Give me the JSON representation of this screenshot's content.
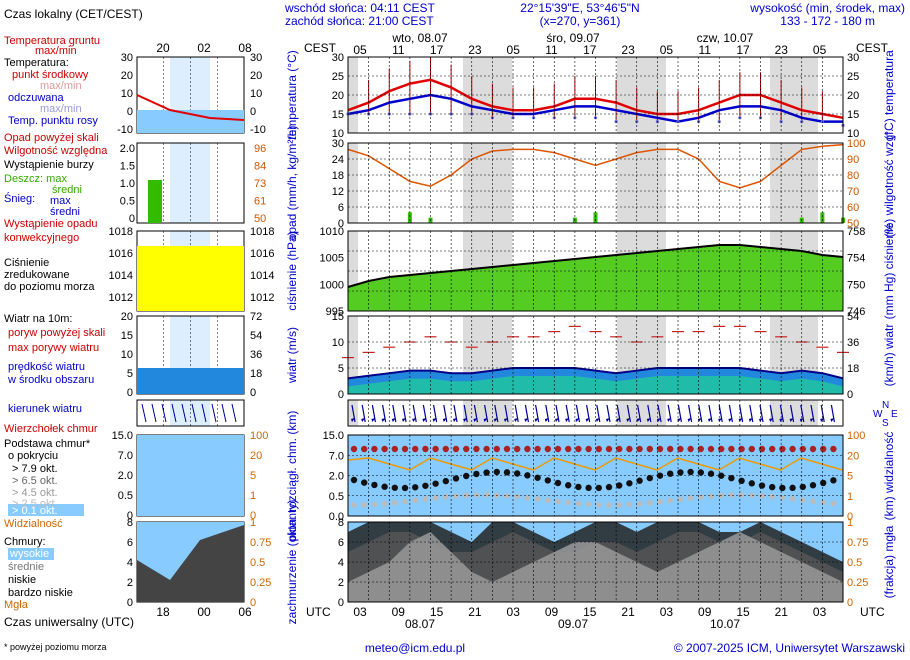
{
  "header": {
    "sunrise": "wschód słońca: 04:11 CEST",
    "sunset": "zachód słońca: 21:00 CEST",
    "coords": "22°15'39\"E, 53°46'5\"N",
    "grid": "(x=270, y=361)",
    "elev_label": "wysokość (min, środek, max)",
    "elev_values": "133 - 172 - 180 m",
    "tz_top": "CEST",
    "tz_bottom": "UTC",
    "days_top": [
      "wto, 08.07",
      "śro, 09.07",
      "czw, 10.07"
    ],
    "days_bottom": [
      "08.07",
      "09.07",
      "10.07"
    ],
    "hours_top": [
      "05",
      "11",
      "17",
      "23",
      "05",
      "11",
      "17",
      "23",
      "05",
      "11",
      "17",
      "23",
      "05"
    ],
    "hours_bottom": [
      "03",
      "09",
      "15",
      "21",
      "03",
      "09",
      "15",
      "21",
      "03",
      "09",
      "15",
      "21",
      "03"
    ]
  },
  "legend": {
    "local_time": "Czas lokalny (CET/CEST)",
    "local_hours": [
      "20",
      "02",
      "08"
    ],
    "utc_label": "Czas uniwersalny (UTC)",
    "utc_hours": [
      "18",
      "00",
      "06"
    ],
    "footnote": "* powyżej poziomu morza",
    "temp": [
      "Temperatura gruntu",
      "max/min",
      "Temperatura:",
      "punkt środkowy",
      "max/min",
      "odczuwana",
      "max/min",
      "Temp. punktu rosy"
    ],
    "temp_ticks": [
      "30",
      "20",
      "10",
      "0",
      "-10"
    ],
    "precip": [
      "Opad powyżej skali",
      "Wilgotność względna",
      "Wystąpienie burzy",
      "Deszcz: max",
      "średni",
      "Śnieg:",
      "max",
      "średni",
      "Wystąpienie opadu",
      "konwekcyjnego"
    ],
    "precip_ticks_left": [
      "2.0",
      "1.5",
      "1.0",
      "0.5",
      "0"
    ],
    "precip_ticks_right": [
      "96",
      "84",
      "73",
      "61",
      "50"
    ],
    "pressure": [
      "Ciśnienie",
      "zredukowane",
      "do poziomu morza"
    ],
    "pressure_ticks": [
      "1018",
      "1016",
      "1014",
      "1012"
    ],
    "wind": [
      "Wiatr na 10m:",
      "poryw powyżej skali",
      "max porywy wiatru",
      "prędkość wiatru",
      "w środku obszaru"
    ],
    "wind_ticks_left": [
      "20",
      "15",
      "10",
      "5",
      "0"
    ],
    "wind_ticks_right": [
      "72",
      "54",
      "36",
      "18",
      "0"
    ],
    "direction": "kierunek wiatru",
    "cloud_base": [
      "Wierzchołek chmur",
      "Podstawa chmur*",
      "o pokryciu",
      "> 7.9 okt.",
      "> 6.5 okt.",
      "> 4.5 okt.",
      "> 2.5 okt.",
      "> 0.1 okt.",
      "Widzialność"
    ],
    "cloud_base_ticks_left": [
      "15.0",
      "7.0",
      "2.0",
      "0.5",
      "0"
    ],
    "cloud_base_ticks_right": [
      "100",
      "20",
      "5",
      "1",
      "0"
    ],
    "clouds": [
      "Chmury:",
      "wysokie",
      "średnie",
      "niskie",
      "bardzo niskie",
      "Mgła"
    ],
    "clouds_ticks_left": [
      "8",
      "6",
      "4",
      "2",
      "0"
    ],
    "clouds_ticks_right": [
      "1",
      "0.75",
      "0.5",
      "0.25",
      "0"
    ]
  },
  "panels": {
    "temp": {
      "left_label": "temperatura (°C)",
      "right_label": "(°C) temperatura",
      "ticks": [
        "30",
        "25",
        "20",
        "15",
        "10"
      ]
    },
    "precip": {
      "left_label": "opad (mm/h, kg/m²/h)",
      "right_label": "(%) wilgotność wzgl.",
      "ticks_left": [
        "30",
        "24",
        "18",
        "12",
        "6",
        "0"
      ],
      "ticks_right": [
        "100",
        "90",
        "80",
        "70",
        "60",
        "50"
      ]
    },
    "pressure": {
      "left_label": "ciśnienie (hPa)",
      "right_label": "(mm Hg) ciśnienie",
      "ticks_left": [
        "1010",
        "1005",
        "1000",
        "995"
      ],
      "ticks_right": [
        "758",
        "754",
        "750",
        "746"
      ]
    },
    "wind": {
      "left_label": "wiatr (m/s)",
      "right_label": "(km/h) wiatr",
      "ticks_left": [
        "15",
        "10",
        "5",
        "0"
      ],
      "ticks_right": [
        "54",
        "36",
        "18",
        "0"
      ]
    },
    "dir": {
      "compass": [
        "N",
        "W",
        "E",
        "S"
      ]
    },
    "cloudbase": {
      "left_label": "pion. rozciągł. chm. (km)",
      "right_label": "(km) widzialność",
      "ticks_left": [
        "15.0",
        "7.0",
        "2.0",
        "0.5",
        "0.0"
      ],
      "ticks_right": [
        "100",
        "20",
        "5",
        "1",
        "0"
      ]
    },
    "cloud": {
      "left_label": "zachmurzenie (oktanty)",
      "right_label": "(frakcja) mgła",
      "ticks_left": [
        "8",
        "6",
        "4",
        "2",
        "0"
      ],
      "ticks_right": [
        "1",
        "0.75",
        "0.5",
        "0.25",
        "0"
      ]
    }
  },
  "footer": {
    "email": "meteo@icm.edu.pl",
    "copyright": "© 2007-2025 ICM, Uniwersytet Warszawski"
  },
  "colors": {
    "red": "#e00000",
    "blue": "#0000cc",
    "green": "#33bb00",
    "yellow": "#ffff00",
    "sky": "#88ccff",
    "orange": "#dd6600",
    "night": "#d8d8d8"
  },
  "chart_data": [
    {
      "type": "line",
      "title": "temperatura",
      "ylabel": "(°C)",
      "ylim": [
        10,
        30
      ],
      "x": [
        "05",
        "08",
        "11",
        "14",
        "17",
        "20",
        "23",
        "02",
        "05",
        "08",
        "11",
        "14",
        "17",
        "20",
        "23",
        "02",
        "05",
        "08",
        "11",
        "14",
        "17",
        "20",
        "23",
        "02",
        "05"
      ],
      "series": [
        {
          "values": [
            16,
            18,
            21,
            23,
            24,
            22,
            19,
            17,
            16,
            16,
            17,
            19,
            19,
            18,
            16,
            15,
            15,
            16,
            18,
            20,
            20,
            18,
            16,
            15,
            14
          ]
        },
        {
          "values": [
            15,
            16,
            18,
            19,
            20,
            19,
            17,
            16,
            15,
            15,
            16,
            17,
            17,
            16,
            15,
            14,
            13,
            14,
            16,
            17,
            17,
            16,
            14,
            13,
            13
          ]
        },
        {
          "values": [
            15,
            15,
            15,
            15,
            15,
            15,
            15,
            14,
            14,
            14,
            14,
            14,
            14,
            13,
            13,
            13,
            13,
            13,
            13,
            14,
            14,
            13,
            13,
            13,
            12
          ]
        }
      ]
    },
    {
      "type": "bar",
      "title": "opad",
      "ylabel": "(mm/h, kg/m²/h)",
      "ylim": [
        0,
        30
      ],
      "x": [
        "05",
        "08",
        "11",
        "14",
        "17",
        "20",
        "23",
        "02",
        "05",
        "08",
        "11",
        "14",
        "17",
        "20",
        "23",
        "02",
        "05",
        "08",
        "11",
        "14",
        "17",
        "20",
        "23",
        "02",
        "05"
      ],
      "values": [
        0,
        0,
        0,
        2,
        1,
        0,
        0,
        0,
        0,
        0,
        0,
        1,
        2,
        0,
        0,
        0,
        0,
        0,
        0,
        0,
        0,
        0,
        1,
        2,
        1
      ],
      "humidity": [
        96,
        92,
        84,
        76,
        73,
        80,
        90,
        95,
        96,
        96,
        94,
        90,
        86,
        90,
        94,
        96,
        96,
        90,
        76,
        72,
        76,
        86,
        96,
        98,
        99
      ]
    },
    {
      "type": "area",
      "title": "ciśnienie",
      "ylabel": "(hPa)",
      "ylim": [
        995,
        1015
      ],
      "x": [
        "05",
        "08",
        "11",
        "14",
        "17",
        "20",
        "23",
        "02",
        "05",
        "08",
        "11",
        "14",
        "17",
        "20",
        "23",
        "02",
        "05",
        "08",
        "11",
        "14",
        "17",
        "20",
        "23",
        "02",
        "05"
      ],
      "values": [
        1001,
        1002.5,
        1003.5,
        1004,
        1004.5,
        1005,
        1005.5,
        1006,
        1006.5,
        1007,
        1007.5,
        1008,
        1008.5,
        1009,
        1009.5,
        1010,
        1010.5,
        1011,
        1011.5,
        1011.5,
        1011,
        1010.5,
        1010,
        1009,
        1008.5
      ]
    },
    {
      "type": "area",
      "title": "wiatr",
      "ylabel": "(m/s)",
      "ylim": [
        0,
        15
      ],
      "x": [
        "05",
        "08",
        "11",
        "14",
        "17",
        "20",
        "23",
        "02",
        "05",
        "08",
        "11",
        "14",
        "17",
        "20",
        "23",
        "02",
        "05",
        "08",
        "11",
        "14",
        "17",
        "20",
        "23",
        "02",
        "05"
      ],
      "values": [
        3,
        3.5,
        4,
        4.5,
        4.5,
        4,
        4,
        4.5,
        5,
        5,
        5,
        5,
        4.5,
        4,
        4.5,
        5,
        5,
        5,
        5,
        5,
        4.5,
        4,
        4.5,
        4,
        3
      ],
      "gusts": [
        7,
        8,
        9,
        10,
        11,
        10,
        9,
        10,
        11,
        11,
        12,
        13,
        12,
        11,
        10,
        11,
        12,
        12,
        13,
        13,
        12,
        11,
        10,
        9,
        8
      ]
    },
    {
      "type": "area",
      "title": "zachmurzenie",
      "ylabel": "(oktanty)",
      "ylim": [
        0,
        8
      ],
      "x": [
        "05",
        "08",
        "11",
        "14",
        "17",
        "20",
        "23",
        "02",
        "05",
        "08",
        "11",
        "14",
        "17",
        "20",
        "23",
        "02",
        "05",
        "08",
        "11",
        "14",
        "17",
        "20",
        "23",
        "02",
        "05"
      ],
      "series": [
        {
          "values": [
            2,
            3,
            4,
            6,
            7,
            5,
            3,
            2,
            3,
            4,
            5,
            6,
            6,
            5,
            4,
            3,
            4,
            5,
            6,
            7,
            6,
            5,
            4,
            3,
            2
          ]
        },
        {
          "values": [
            5,
            6,
            7,
            7,
            6,
            5,
            5,
            6,
            7,
            6,
            5,
            5,
            6,
            6,
            5,
            6,
            7,
            7,
            6,
            6,
            7,
            6,
            5,
            4,
            3
          ]
        },
        {
          "values": [
            7,
            8,
            8,
            8,
            8,
            7,
            6,
            8,
            8,
            7,
            6,
            7,
            8,
            8,
            7,
            8,
            8,
            8,
            7,
            7,
            8,
            7,
            6,
            5,
            4
          ]
        }
      ]
    }
  ]
}
